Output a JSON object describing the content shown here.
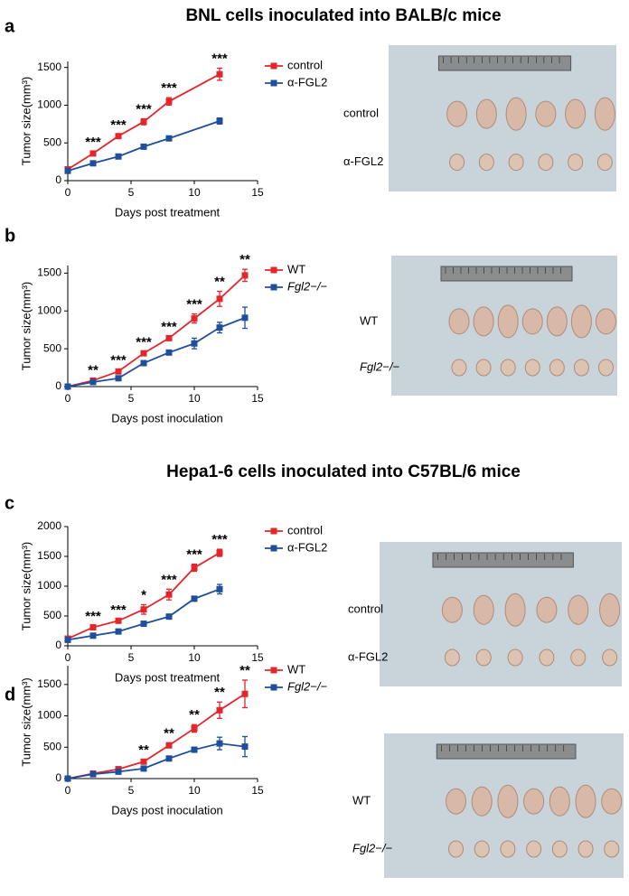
{
  "headings": [
    "BNL cells inoculated into BALB/c mice",
    "Hepa1-6 cells inoculated into C57BL/6 mice"
  ],
  "chart_data": [
    {
      "type": "line",
      "panel": "a",
      "x_label": "Days post treatment",
      "y_label": "Tumor size(mm³)",
      "x": [
        0,
        2,
        4,
        6,
        8,
        12
      ],
      "series": [
        {
          "name": "control",
          "color": "#e3262b",
          "values": [
            150,
            360,
            590,
            780,
            1050,
            1410
          ],
          "errors": [
            20,
            20,
            20,
            40,
            50,
            80
          ]
        },
        {
          "name": "α-FGL2",
          "color": "#1f4e9c",
          "values": [
            130,
            230,
            320,
            450,
            560,
            790
          ],
          "errors": [
            10,
            15,
            20,
            20,
            20,
            40
          ]
        }
      ],
      "annotations": [
        {
          "x": 2,
          "text": "***"
        },
        {
          "x": 4,
          "text": "***"
        },
        {
          "x": 6,
          "text": "***"
        },
        {
          "x": 8,
          "text": "***"
        },
        {
          "x": 12,
          "text": "***"
        }
      ],
      "xlim": [
        0,
        15
      ],
      "xticks": [
        0,
        5,
        10,
        15
      ],
      "ylim": [
        0,
        1580
      ],
      "yticks": [
        0,
        500,
        1000,
        1500
      ],
      "image_labels": [
        "control",
        "α-FGL2"
      ]
    },
    {
      "type": "line",
      "panel": "b",
      "x_label": "Days post inoculation",
      "y_label": "Tumor size(mm³)",
      "x": [
        0,
        2,
        4,
        6,
        8,
        10,
        12,
        14
      ],
      "series": [
        {
          "name": "WT",
          "color": "#e3262b",
          "values": [
            0,
            80,
            200,
            440,
            640,
            900,
            1160,
            1470
          ],
          "errors": [
            0,
            10,
            20,
            20,
            20,
            60,
            100,
            80
          ]
        },
        {
          "name": "Fgl2−/−",
          "color": "#1f4e9c",
          "values": [
            0,
            60,
            110,
            310,
            450,
            570,
            780,
            910
          ],
          "errors": [
            0,
            10,
            15,
            20,
            30,
            70,
            70,
            140
          ]
        }
      ],
      "annotations": [
        {
          "x": 2,
          "text": "**"
        },
        {
          "x": 4,
          "text": "***"
        },
        {
          "x": 6,
          "text": "***"
        },
        {
          "x": 8,
          "text": "***"
        },
        {
          "x": 10,
          "text": "***"
        },
        {
          "x": 12,
          "text": "**"
        },
        {
          "x": 14,
          "text": "**"
        }
      ],
      "xlim": [
        0,
        15
      ],
      "xticks": [
        0,
        5,
        10,
        15
      ],
      "ylim": [
        0,
        1600
      ],
      "yticks": [
        0,
        500,
        1000,
        1500
      ],
      "image_labels": [
        "WT",
        "Fgl2−/−"
      ]
    },
    {
      "type": "line",
      "panel": "c",
      "x_label": "Days post treatment",
      "y_label": "Tumor size(mm³)",
      "x": [
        0,
        2,
        4,
        6,
        8,
        10,
        12
      ],
      "series": [
        {
          "name": "control",
          "color": "#e3262b",
          "values": [
            120,
            310,
            420,
            610,
            860,
            1310,
            1560
          ],
          "errors": [
            10,
            20,
            20,
            80,
            90,
            60,
            60
          ]
        },
        {
          "name": "α-FGL2",
          "color": "#1f4e9c",
          "values": [
            100,
            170,
            240,
            370,
            490,
            790,
            950
          ],
          "errors": [
            10,
            10,
            20,
            20,
            20,
            40,
            80
          ]
        }
      ],
      "annotations": [
        {
          "x": 2,
          "text": "***"
        },
        {
          "x": 4,
          "text": "***"
        },
        {
          "x": 6,
          "text": "*"
        },
        {
          "x": 8,
          "text": "***"
        },
        {
          "x": 10,
          "text": "***"
        },
        {
          "x": 12,
          "text": "***"
        }
      ],
      "xlim": [
        0,
        15
      ],
      "xticks": [
        0,
        5,
        10,
        15
      ],
      "ylim": [
        0,
        2000
      ],
      "yticks": [
        0,
        500,
        1000,
        1500,
        2000
      ],
      "image_labels": [
        "control",
        "α-FGL2"
      ]
    },
    {
      "type": "line",
      "panel": "d",
      "x_label": "Days post inoculation",
      "y_label": "Tumor size(mm³)",
      "x": [
        0,
        2,
        4,
        6,
        8,
        10,
        12,
        14
      ],
      "series": [
        {
          "name": "WT",
          "color": "#e3262b",
          "values": [
            0,
            80,
            150,
            270,
            530,
            800,
            1090,
            1350
          ],
          "errors": [
            0,
            10,
            20,
            30,
            40,
            60,
            130,
            220
          ]
        },
        {
          "name": "Fgl2−/−",
          "color": "#1f4e9c",
          "values": [
            0,
            70,
            110,
            160,
            320,
            460,
            560,
            510
          ],
          "errors": [
            0,
            10,
            20,
            20,
            30,
            40,
            100,
            160
          ]
        }
      ],
      "annotations": [
        {
          "x": 6,
          "text": "**"
        },
        {
          "x": 8,
          "text": "**"
        },
        {
          "x": 10,
          "text": "**"
        },
        {
          "x": 12,
          "text": "**"
        },
        {
          "x": 14,
          "text": "**"
        }
      ],
      "xlim": [
        0,
        15
      ],
      "xticks": [
        0,
        5,
        10,
        15
      ],
      "ylim": [
        0,
        1800
      ],
      "yticks": [
        0,
        500,
        1000,
        1500
      ],
      "image_labels": [
        "WT",
        "Fgl2−/−"
      ]
    }
  ]
}
